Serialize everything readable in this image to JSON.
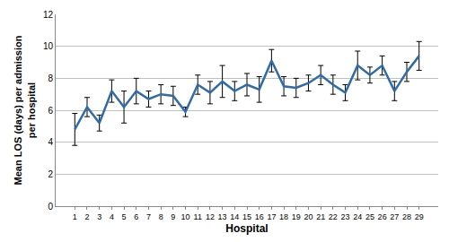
{
  "chart_data": {
    "type": "line",
    "x_label": "Hospital",
    "y_label": "Mean LOS (days) per admission per hospital",
    "categories": [
      "1",
      "2",
      "3",
      "4",
      "5",
      "6",
      "7",
      "8",
      "9",
      "10",
      "11",
      "12",
      "13",
      "14",
      "15",
      "16",
      "17",
      "18",
      "19",
      "20",
      "21",
      "22",
      "23",
      "24",
      "25",
      "26",
      "27",
      "28",
      "29"
    ],
    "values": [
      4.8,
      6.2,
      5.2,
      7.2,
      6.2,
      7.2,
      6.7,
      7.0,
      6.9,
      5.9,
      7.6,
      7.1,
      7.8,
      7.2,
      7.6,
      7.3,
      9.1,
      7.5,
      7.4,
      7.7,
      8.2,
      7.6,
      7.1,
      8.8,
      8.2,
      8.8,
      7.2,
      8.4,
      9.4
    ],
    "error": [
      1.0,
      0.6,
      0.5,
      0.7,
      1.0,
      0.8,
      0.5,
      0.6,
      0.6,
      0.3,
      0.6,
      0.7,
      1.0,
      0.6,
      0.7,
      0.8,
      0.7,
      0.6,
      0.6,
      0.5,
      0.6,
      0.6,
      0.5,
      0.9,
      0.5,
      0.6,
      0.6,
      0.6,
      0.9
    ],
    "color": "#2f6ba8",
    "ylim": [
      0,
      12
    ],
    "yticks": [
      0,
      2,
      4,
      6,
      8,
      10,
      12
    ],
    "grid": true
  }
}
